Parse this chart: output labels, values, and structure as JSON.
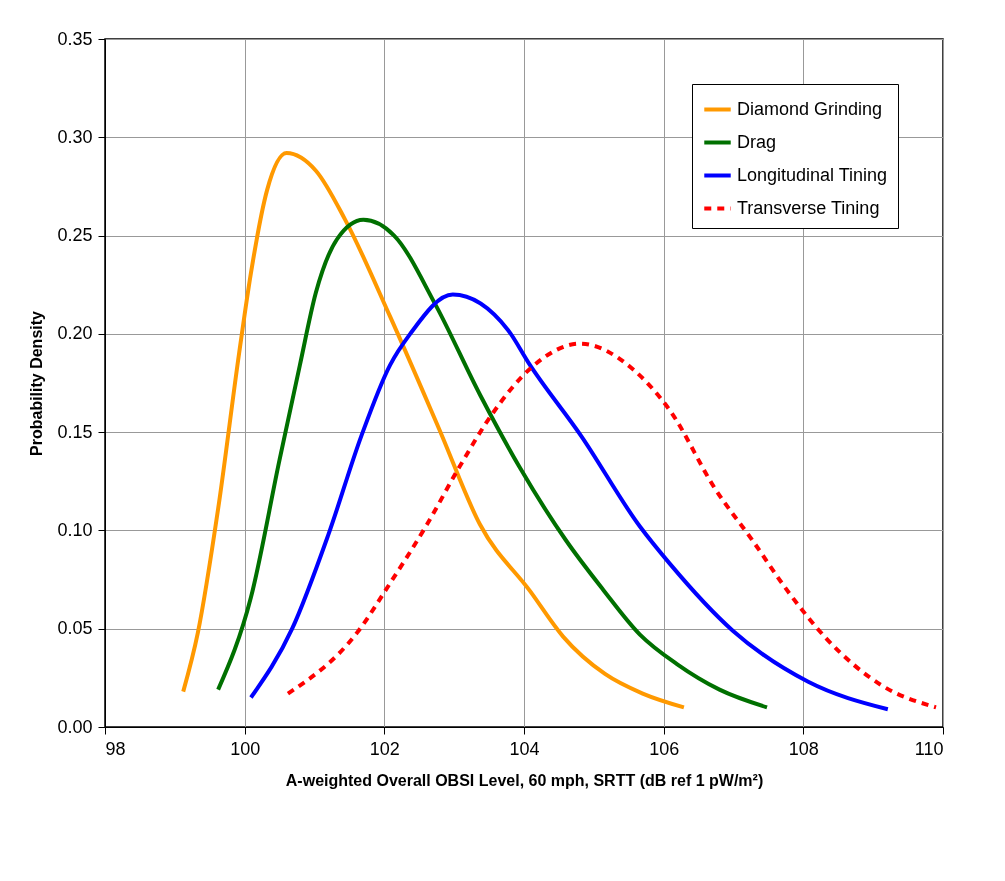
{
  "chart_data": {
    "type": "line",
    "xlabel": "A-weighted Overall OBSI Level, 60 mph, SRTT (dB ref 1 pW/m²)",
    "ylabel": "Probability Density",
    "xlim": [
      98,
      110
    ],
    "xticks": [
      98,
      100,
      102,
      104,
      106,
      108,
      110
    ],
    "ylim": [
      0,
      0.35
    ],
    "yticks": [
      {
        "value": 0,
        "label": "0.00"
      },
      0.05,
      {
        "value": 0.1,
        "label": "0.10"
      },
      0.15,
      {
        "value": 0.2,
        "label": "0.20"
      },
      0.25,
      {
        "value": 0.3,
        "label": "0.30"
      },
      0.35
    ],
    "grid": true,
    "legend": "top right",
    "marker": "none",
    "series": [
      {
        "name": "Diamond Grinding",
        "color": "#ff9900",
        "line_style": "solid",
        "x": [
          99.12,
          99.33,
          99.62,
          99.92,
          100.09,
          100.32,
          100.6,
          101.02,
          101.44,
          102.08,
          102.78,
          103.37,
          104.09,
          104.56,
          105.16,
          105.7,
          106.29
        ],
        "values": [
          0.018,
          0.048,
          0.111,
          0.19,
          0.231,
          0.273,
          0.292,
          0.283,
          0.258,
          0.209,
          0.152,
          0.103,
          0.069,
          0.046,
          0.027,
          0.017,
          0.01
        ]
      },
      {
        "name": "Drag",
        "color": "#007000",
        "line_style": "solid",
        "x": [
          99.62,
          100.09,
          100.5,
          100.79,
          101.02,
          101.32,
          101.7,
          102.14,
          102.73,
          103.37,
          103.94,
          104.6,
          105.13,
          105.66,
          106.19,
          106.8,
          107.48
        ],
        "values": [
          0.019,
          0.066,
          0.136,
          0.184,
          0.221,
          0.248,
          0.258,
          0.25,
          0.215,
          0.169,
          0.132,
          0.095,
          0.07,
          0.047,
          0.032,
          0.019,
          0.01
        ]
      },
      {
        "name": "Longitudinal Tining",
        "color": "#0000ff",
        "line_style": "solid",
        "x": [
          100.09,
          100.68,
          101.2,
          101.67,
          102.08,
          102.37,
          102.98,
          103.77,
          104.07,
          104.82,
          105.66,
          106.09,
          106.99,
          108.07,
          109.21
        ],
        "values": [
          0.015,
          0.05,
          0.098,
          0.148,
          0.184,
          0.2,
          0.22,
          0.202,
          0.185,
          0.148,
          0.102,
          0.083,
          0.049,
          0.023,
          0.009
        ]
      },
      {
        "name": "Transverse Tining",
        "color": "#ff0000",
        "line_style": "dotted",
        "x": [
          100.62,
          101.61,
          102.08,
          102.61,
          103.07,
          103.54,
          104.11,
          104.8,
          105.56,
          106.09,
          106.74,
          107.27,
          107.8,
          108.33,
          109.13,
          109.9
        ],
        "values": [
          0.017,
          0.048,
          0.073,
          0.103,
          0.132,
          0.159,
          0.183,
          0.195,
          0.182,
          0.161,
          0.121,
          0.095,
          0.068,
          0.045,
          0.021,
          0.01
        ]
      }
    ]
  }
}
